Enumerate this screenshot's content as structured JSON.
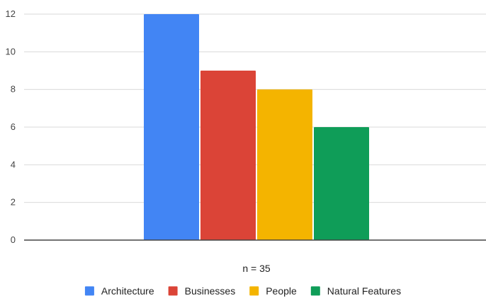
{
  "chart_data": {
    "type": "bar",
    "categories": [
      ""
    ],
    "series": [
      {
        "name": "Architecture",
        "values": [
          12
        ],
        "color": "#4285F4"
      },
      {
        "name": "Businesses",
        "values": [
          9
        ],
        "color": "#DB4437"
      },
      {
        "name": "People",
        "values": [
          8
        ],
        "color": "#F4B400"
      },
      {
        "name": "Natural Features",
        "values": [
          6
        ],
        "color": "#0F9D58"
      }
    ],
    "title": "",
    "xlabel": "n = 35",
    "ylabel": "",
    "ylim": [
      0,
      12
    ],
    "yticks": [
      0,
      2,
      4,
      6,
      8,
      10,
      12
    ],
    "grid": true,
    "legend_position": "bottom"
  }
}
